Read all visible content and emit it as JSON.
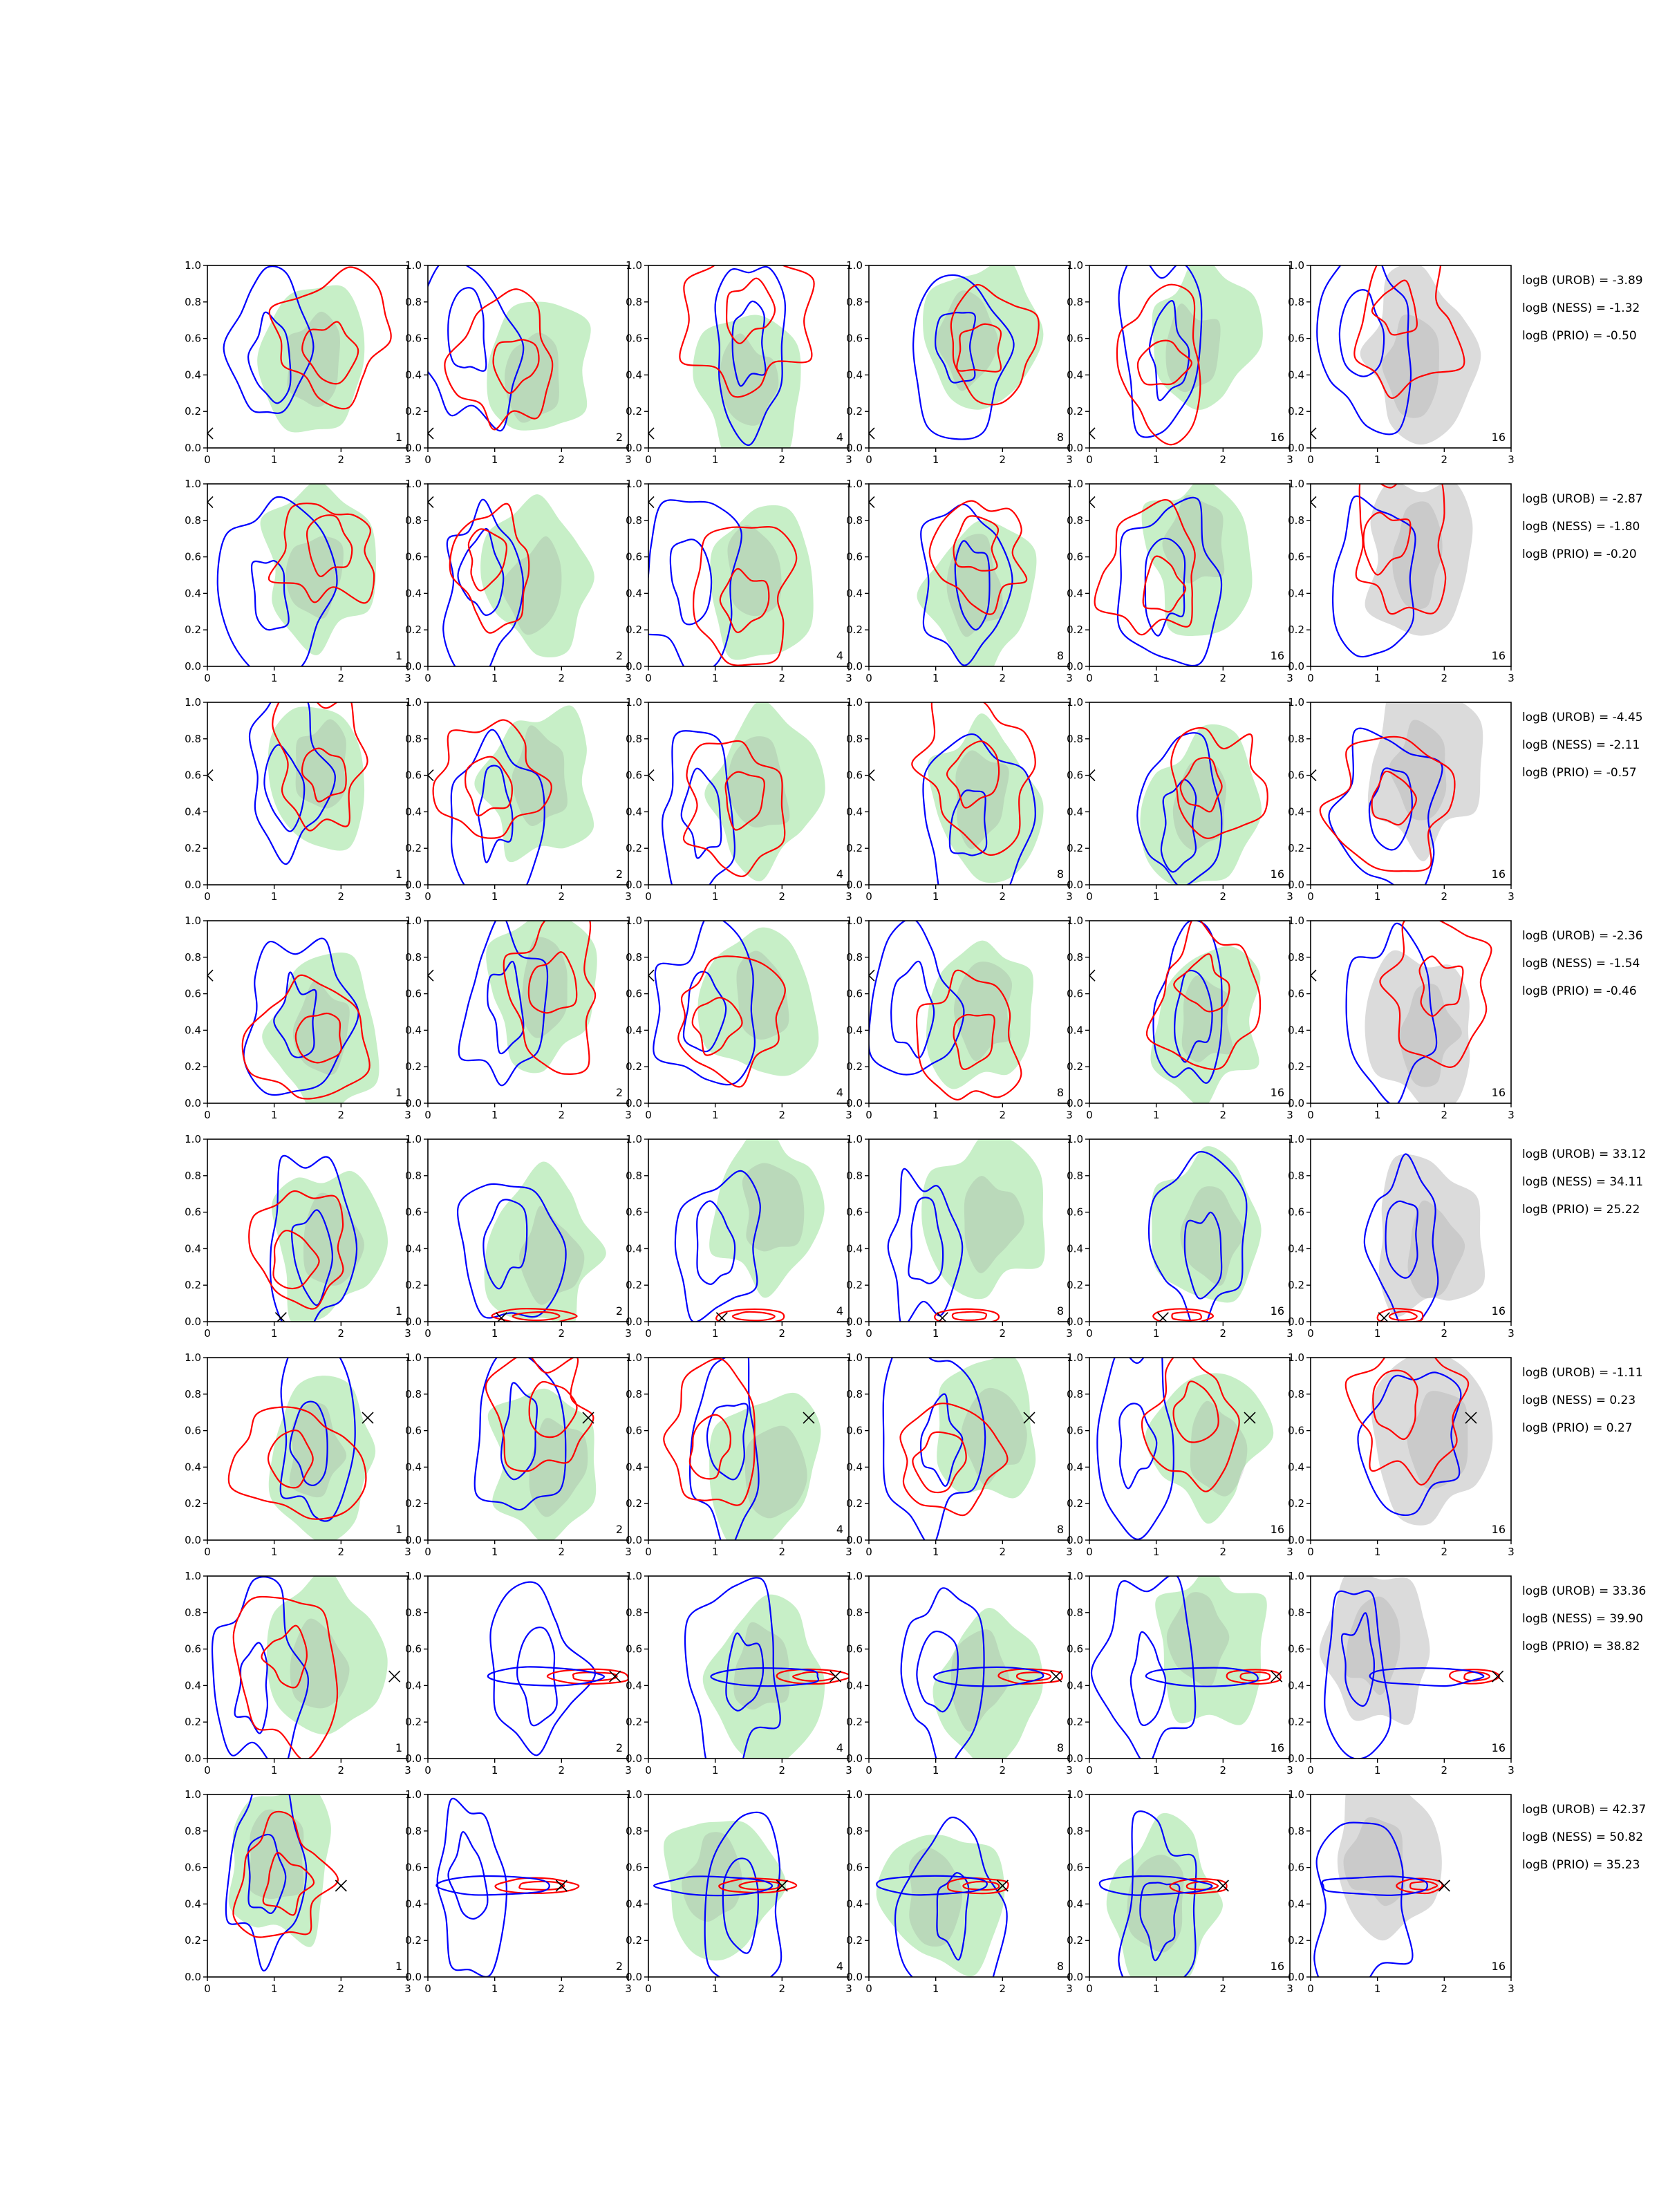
{
  "chart_data": {
    "type": "contour_grid",
    "rows": 8,
    "cols": 6,
    "xlim": [
      0,
      3
    ],
    "ylim": [
      0,
      1
    ],
    "xticks": [
      "0",
      "1",
      "2",
      "3"
    ],
    "yticks": [
      "0.0",
      "0.2",
      "0.4",
      "0.6",
      "0.8",
      "1.0"
    ],
    "panel_labels": [
      "1",
      "2",
      "4",
      "8",
      "16",
      "16"
    ],
    "colors": {
      "posterior_contour": "#ff0000",
      "reference_contour": "#0000ff",
      "fill_green": "#8fe08f",
      "fill_grey": "#bdbdbd",
      "truth_marker": "#000000"
    },
    "truth_markers": [
      {
        "x": 0.0,
        "y": 0.08
      },
      {
        "x": 0.0,
        "y": 0.9
      },
      {
        "x": 0.0,
        "y": 0.6
      },
      {
        "x": 0.0,
        "y": 0.7
      },
      {
        "x": 1.1,
        "y": 0.02
      },
      {
        "x": 2.4,
        "y": 0.67
      },
      {
        "x": 2.8,
        "y": 0.45
      },
      {
        "x": 2.0,
        "y": 0.5
      }
    ],
    "evidence": [
      [
        "logB (UROB) = -3.89",
        "logB (NESS) = -1.32",
        "logB (PRIO) = -0.50"
      ],
      [
        "logB (UROB) = -2.87",
        "logB (NESS) = -1.80",
        "logB (PRIO) = -0.20"
      ],
      [
        "logB (UROB) = -4.45",
        "logB (NESS) = -2.11",
        "logB (PRIO) = -0.57"
      ],
      [
        "logB (UROB) = -2.36",
        "logB (NESS) = -1.54",
        "logB (PRIO) = -0.46"
      ],
      [
        "logB (UROB) = 33.12",
        "logB (NESS) = 34.11",
        "logB (PRIO) = 25.22"
      ],
      [
        "logB (UROB) = -1.11",
        "logB (NESS) = 0.23",
        "logB (PRIO) = 0.27"
      ],
      [
        "logB (UROB) = 33.36",
        "logB (NESS) = 39.90",
        "logB (PRIO) = 38.82"
      ],
      [
        "logB (UROB) = 42.37",
        "logB (NESS) = 50.82",
        "logB (PRIO) = 35.23"
      ]
    ]
  }
}
